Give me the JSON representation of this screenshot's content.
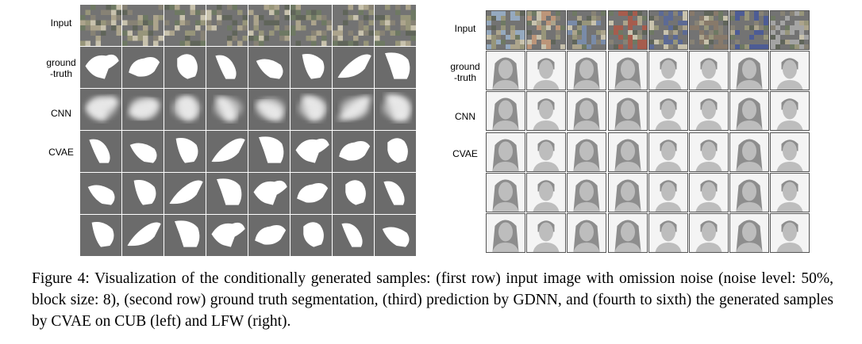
{
  "figure": {
    "number_label": "Figure 4:",
    "caption": "Visualization of the conditionally generated samples: (first row) input image with omission noise (noise level: 50%, block size: 8), (second row) ground truth segmentation, (third) prediction by GDNN, and (fourth to sixth) the generated samples by CVAE on CUB (left) and LFW (right).",
    "left_panel": {
      "dataset": "CUB",
      "row_labels": [
        "Input",
        "ground\n-truth",
        "CNN",
        "CVAE"
      ],
      "rows": [
        "input",
        "ground-truth",
        "cnn",
        "cvae-1",
        "cvae-2",
        "cvae-3"
      ],
      "columns": 8
    },
    "right_panel": {
      "dataset": "LFW",
      "row_labels": [
        "Input",
        "ground\n-truth",
        "CNN",
        "CVAE"
      ],
      "rows": [
        "input",
        "ground-truth",
        "cnn",
        "cvae-1",
        "cvae-2",
        "cvae-3"
      ],
      "columns": 8
    }
  },
  "colors": {
    "bird_background": "#6b6b6b",
    "bird_foreground": "#ffffff",
    "face_background": "#f4f4f4",
    "face_hair": "#8d8d8d",
    "face_skin": "#bdbdbd",
    "noise_palette": [
      "#7a7466",
      "#a39a80",
      "#5e6a52",
      "#c2bba4",
      "#8c8a6c",
      "#4f5448"
    ]
  }
}
